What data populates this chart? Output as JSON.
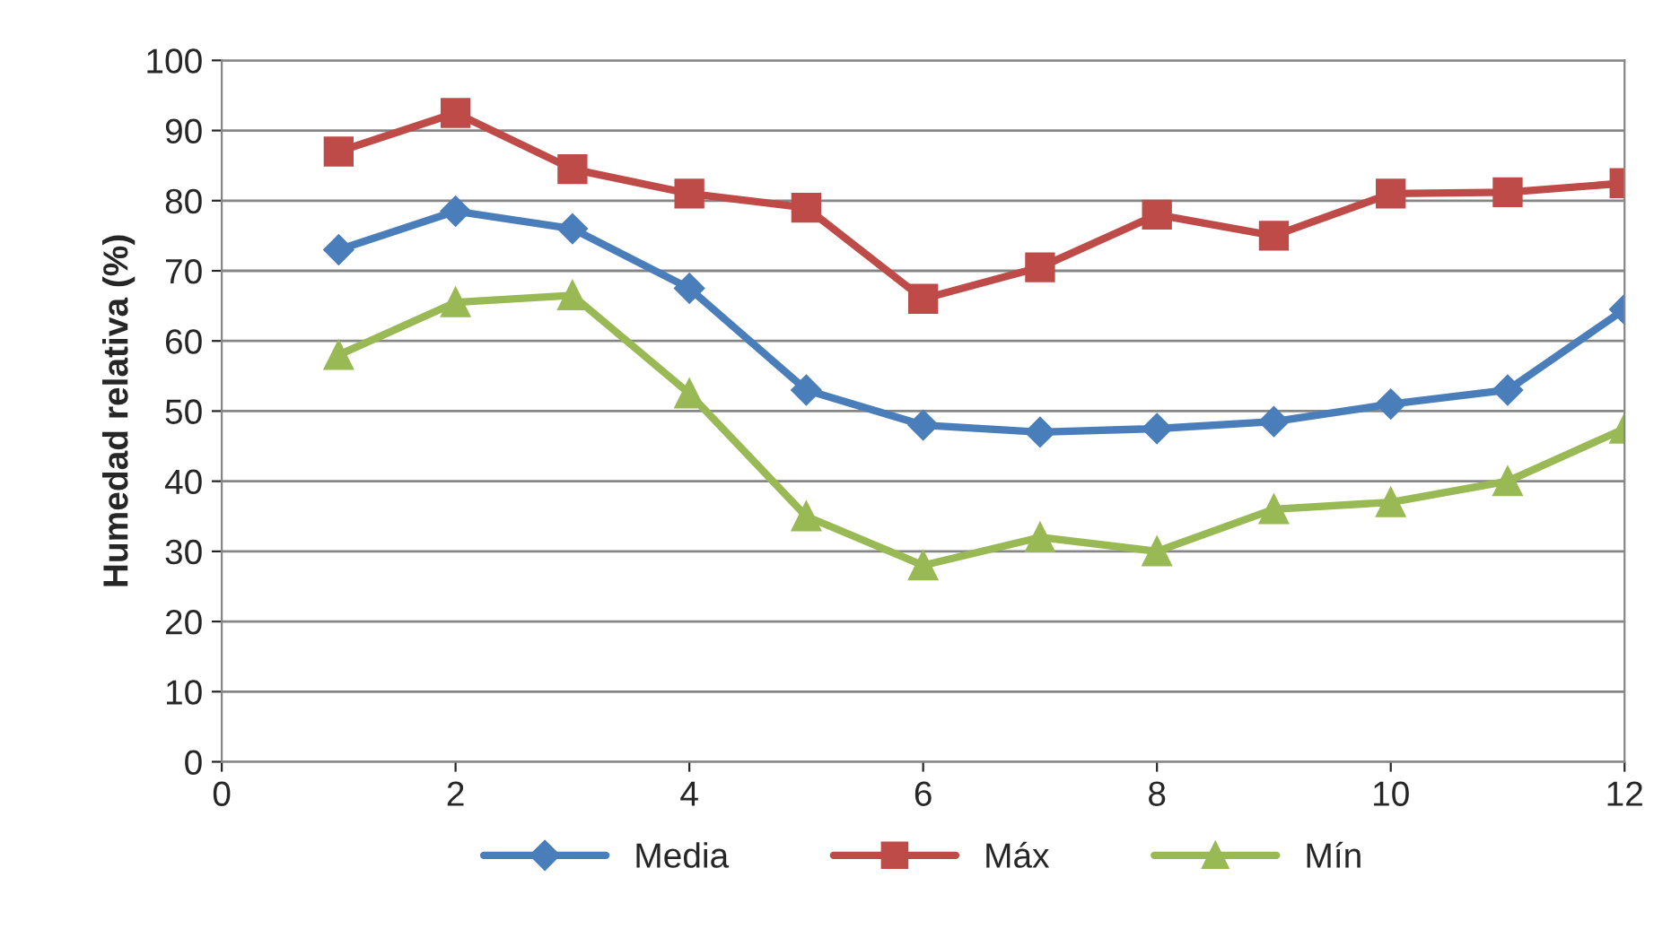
{
  "chart_data": {
    "type": "line",
    "ylabel": "Humedad relativa (%)",
    "x": [
      1,
      2,
      3,
      4,
      5,
      6,
      7,
      8,
      9,
      10,
      11,
      12
    ],
    "series": [
      {
        "name": "Media",
        "color": "#4a7ebb",
        "marker": "diamond",
        "values": [
          73,
          78.5,
          76,
          67.5,
          53,
          48,
          47,
          47.5,
          48.5,
          51,
          53,
          64.5
        ]
      },
      {
        "name": "Máx",
        "color": "#be4b48",
        "marker": "square",
        "values": [
          87,
          92.5,
          84.5,
          81,
          79,
          66,
          70.5,
          78,
          75,
          81,
          81.2,
          82.5
        ]
      },
      {
        "name": "Mín",
        "color": "#98b954",
        "marker": "triangle",
        "values": [
          58,
          65.5,
          66.5,
          52.5,
          35,
          28,
          32,
          30,
          36,
          37,
          40,
          47.5
        ]
      }
    ],
    "xlim": [
      0,
      12
    ],
    "xticks": [
      0,
      2,
      4,
      6,
      8,
      10,
      12
    ],
    "ylim": [
      0,
      100
    ],
    "yticks": [
      0,
      10,
      20,
      30,
      40,
      50,
      60,
      70,
      80,
      90,
      100
    ],
    "grid": "y",
    "legend": "bottom",
    "line_style": "solid"
  }
}
